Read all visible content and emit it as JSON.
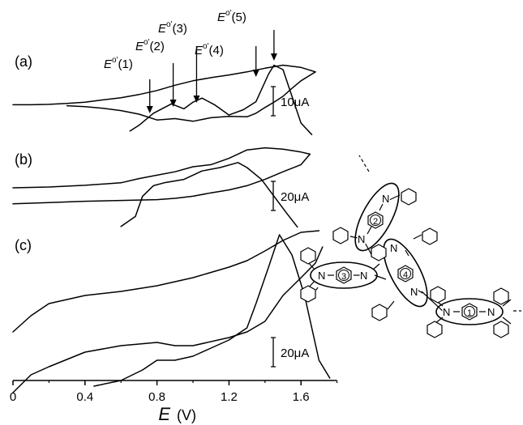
{
  "chart_data": {
    "type": "line",
    "xlabel": "E",
    "xunit": "(V)",
    "xlim": [
      0,
      1.8
    ],
    "xticks": [
      {
        "value": 0,
        "label": "0"
      },
      {
        "value": 0.4,
        "label": "0.4"
      },
      {
        "value": 0.8,
        "label": "0.8"
      },
      {
        "value": 1.2,
        "label": "1.2"
      },
      {
        "value": 1.6,
        "label": "1.6"
      }
    ],
    "panels": [
      {
        "label": "(a)",
        "scale_label": "10μA",
        "cv_upper": [
          [
            0.0,
            0.01
          ],
          [
            0.1,
            0.01
          ],
          [
            0.2,
            0.02
          ],
          [
            0.3,
            0.04
          ],
          [
            0.4,
            0.07
          ],
          [
            0.5,
            0.12
          ],
          [
            0.6,
            0.17
          ],
          [
            0.7,
            0.24
          ],
          [
            0.8,
            0.33
          ],
          [
            0.9,
            0.45
          ],
          [
            1.0,
            0.55
          ],
          [
            1.1,
            0.62
          ],
          [
            1.2,
            0.68
          ],
          [
            1.3,
            0.75
          ],
          [
            1.4,
            0.83
          ],
          [
            1.5,
            0.9
          ],
          [
            1.6,
            0.85
          ],
          [
            1.68,
            0.75
          ]
        ],
        "cv_lower": [
          [
            1.68,
            0.75
          ],
          [
            1.6,
            0.55
          ],
          [
            1.55,
            0.38
          ],
          [
            1.5,
            0.2
          ],
          [
            1.45,
            0.07
          ],
          [
            1.4,
            -0.05
          ],
          [
            1.35,
            -0.18
          ],
          [
            1.3,
            -0.26
          ],
          [
            1.2,
            -0.25
          ],
          [
            1.1,
            -0.28
          ],
          [
            1.0,
            -0.36
          ],
          [
            0.9,
            -0.3
          ],
          [
            0.8,
            -0.33
          ],
          [
            0.7,
            -0.2
          ],
          [
            0.6,
            -0.12
          ],
          [
            0.5,
            -0.07
          ],
          [
            0.4,
            -0.03
          ],
          [
            0.3,
            -0.01
          ]
        ],
        "dpv": [
          [
            0.65,
            -0.58
          ],
          [
            0.7,
            -0.45
          ],
          [
            0.78,
            -0.18
          ],
          [
            0.88,
            0.03
          ],
          [
            0.95,
            -0.08
          ],
          [
            1.0,
            0.07
          ],
          [
            1.05,
            0.16
          ],
          [
            1.12,
            0.01
          ],
          [
            1.2,
            -0.22
          ],
          [
            1.28,
            -0.1
          ],
          [
            1.35,
            0.08
          ],
          [
            1.42,
            0.7
          ],
          [
            1.45,
            0.9
          ],
          [
            1.5,
            0.8
          ],
          [
            1.55,
            0.2
          ],
          [
            1.6,
            -0.4
          ],
          [
            1.66,
            -0.66
          ]
        ],
        "annotations": [
          {
            "label": "E",
            "sup": "o'",
            "suffix": "(1)",
            "x": 0.76
          },
          {
            "label": "E",
            "sup": "o'",
            "suffix": "(2)",
            "x": 0.89
          },
          {
            "label": "E",
            "sup": "o'",
            "suffix": "(3)",
            "x": 1.02
          },
          {
            "label": "E",
            "sup": "o'",
            "suffix": "(4)",
            "x": 1.35
          },
          {
            "label": "E",
            "sup": "o'",
            "suffix": "(5)",
            "x": 1.45
          }
        ]
      },
      {
        "label": "(b)",
        "scale_label": "20μA",
        "cv_upper": [
          [
            0.0,
            0.0
          ],
          [
            0.2,
            0.02
          ],
          [
            0.4,
            0.06
          ],
          [
            0.6,
            0.12
          ],
          [
            0.7,
            0.22
          ],
          [
            0.8,
            0.3
          ],
          [
            0.9,
            0.38
          ],
          [
            1.0,
            0.5
          ],
          [
            1.1,
            0.55
          ],
          [
            1.2,
            0.7
          ],
          [
            1.3,
            0.9
          ],
          [
            1.4,
            0.95
          ],
          [
            1.5,
            0.92
          ],
          [
            1.6,
            0.85
          ],
          [
            1.65,
            0.8
          ]
        ],
        "cv_lower": [
          [
            1.65,
            0.8
          ],
          [
            1.6,
            0.55
          ],
          [
            1.5,
            0.38
          ],
          [
            1.4,
            0.2
          ],
          [
            1.3,
            0.05
          ],
          [
            1.2,
            -0.05
          ],
          [
            1.1,
            -0.12
          ],
          [
            1.0,
            -0.2
          ],
          [
            0.9,
            -0.25
          ],
          [
            0.8,
            -0.28
          ],
          [
            0.6,
            -0.3
          ],
          [
            0.4,
            -0.32
          ],
          [
            0.2,
            -0.35
          ],
          [
            0.0,
            -0.38
          ]
        ],
        "dpv": [
          [
            0.6,
            -0.92
          ],
          [
            0.68,
            -0.68
          ],
          [
            0.72,
            -0.2
          ],
          [
            0.78,
            0.05
          ],
          [
            0.84,
            0.12
          ],
          [
            0.95,
            0.2
          ],
          [
            1.05,
            0.4
          ],
          [
            1.15,
            0.48
          ],
          [
            1.25,
            0.6
          ],
          [
            1.3,
            0.48
          ],
          [
            1.38,
            0.2
          ],
          [
            1.45,
            -0.2
          ],
          [
            1.52,
            -0.6
          ],
          [
            1.58,
            -0.93
          ]
        ]
      },
      {
        "label": "(c)",
        "scale_label": "20μA",
        "cv_upper": [
          [
            0.0,
            -0.25
          ],
          [
            0.1,
            -0.05
          ],
          [
            0.2,
            0.1
          ],
          [
            0.4,
            0.2
          ],
          [
            0.6,
            0.25
          ],
          [
            0.8,
            0.32
          ],
          [
            1.0,
            0.42
          ],
          [
            1.2,
            0.55
          ],
          [
            1.3,
            0.63
          ],
          [
            1.4,
            0.75
          ],
          [
            1.5,
            0.88
          ],
          [
            1.6,
            0.98
          ],
          [
            1.7,
            1.0
          ]
        ],
        "cv_lower": [
          [
            1.72,
            0.8
          ],
          [
            1.68,
            0.6
          ],
          [
            1.6,
            0.42
          ],
          [
            1.5,
            0.2
          ],
          [
            1.4,
            -0.12
          ],
          [
            1.3,
            -0.25
          ],
          [
            1.2,
            -0.32
          ],
          [
            1.0,
            -0.42
          ],
          [
            0.9,
            -0.42
          ],
          [
            0.8,
            -0.38
          ],
          [
            0.6,
            -0.42
          ],
          [
            0.4,
            -0.5
          ],
          [
            0.2,
            -0.68
          ],
          [
            0.1,
            -0.78
          ],
          [
            0.0,
            -1.0
          ]
        ],
        "dpv": [
          [
            0.45,
            -0.92
          ],
          [
            0.6,
            -0.85
          ],
          [
            0.72,
            -0.72
          ],
          [
            0.8,
            -0.6
          ],
          [
            0.9,
            -0.6
          ],
          [
            1.0,
            -0.55
          ],
          [
            1.1,
            -0.45
          ],
          [
            1.2,
            -0.35
          ],
          [
            1.3,
            -0.2
          ],
          [
            1.35,
            0.1
          ],
          [
            1.42,
            0.55
          ],
          [
            1.48,
            0.95
          ],
          [
            1.55,
            0.7
          ],
          [
            1.62,
            0.2
          ],
          [
            1.7,
            -0.6
          ],
          [
            1.76,
            -0.82
          ]
        ]
      }
    ]
  },
  "structure": {
    "unit_labels": [
      "1",
      "2",
      "3",
      "4"
    ],
    "atom_label": "N"
  }
}
